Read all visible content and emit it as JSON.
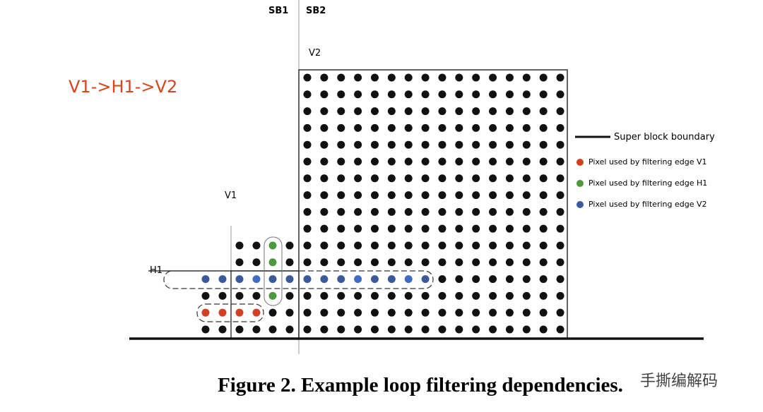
{
  "labels": {
    "sb1": "SB1",
    "sb2": "SB2",
    "v2": "V2",
    "v1": "V1",
    "h1": "H1",
    "order": "V1->H1->V2"
  },
  "legend": {
    "boundary": "Super block boundary",
    "items": [
      {
        "label": "Pixel used by filtering edge V1",
        "color": "#d2401f"
      },
      {
        "label": "Pixel used by filtering edge H1",
        "color": "#4c9a3c"
      },
      {
        "label": "Pixel used by filtering edge V2",
        "color": "#3a5a9c"
      }
    ]
  },
  "caption": "Figure 2. Example loop filtering dependencies.",
  "watermark": "手撕编解码",
  "colors": {
    "accent": "#d9441c",
    "pixel": "#111111",
    "v1": "#d2401f",
    "h1": "#4c9a3c",
    "v2": "#3a5a9c",
    "v2_light": "#3f6cc4"
  }
}
